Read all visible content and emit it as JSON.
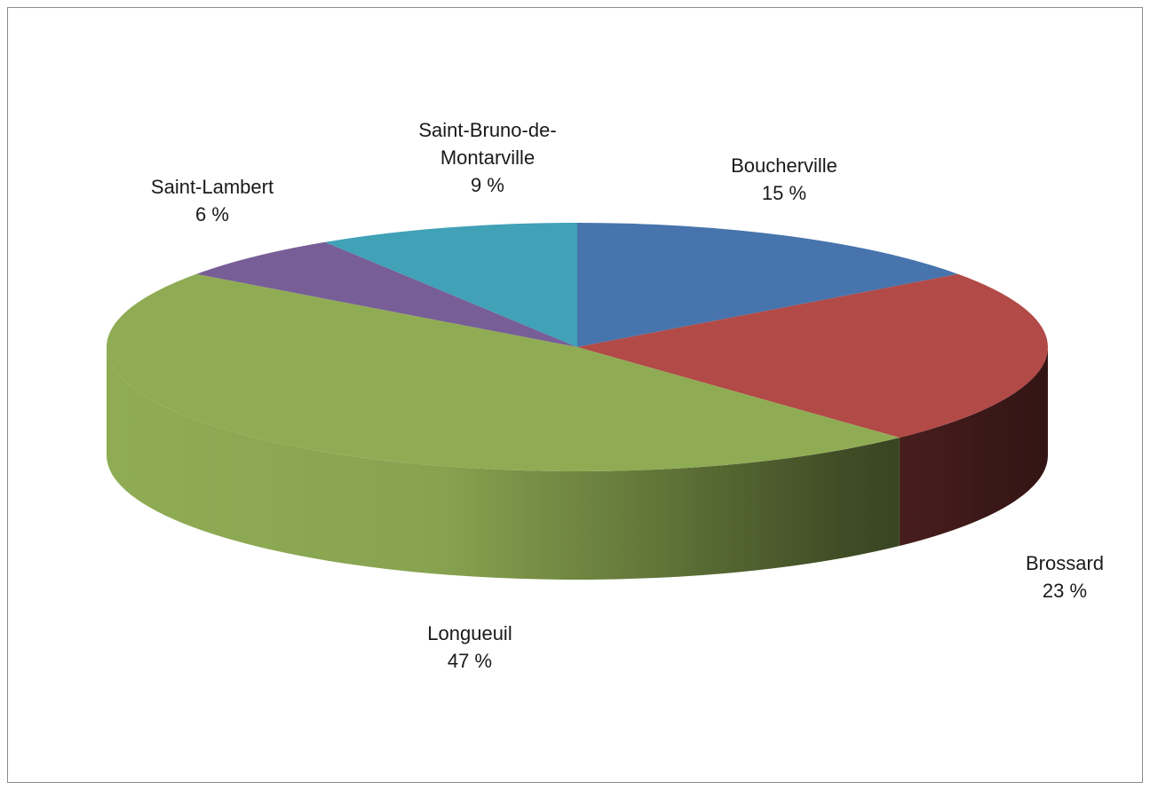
{
  "chart_data": {
    "type": "pie",
    "style": "3d",
    "title": "",
    "unit": "%",
    "legend": "none",
    "slices": [
      {
        "label": "Boucherville",
        "value": 15,
        "value_label": "15 %",
        "color": "#4774ad"
      },
      {
        "label": "Brossard",
        "value": 23,
        "value_label": "23 %",
        "color": "#b24a47"
      },
      {
        "label": "Longueuil",
        "value": 47,
        "value_label": "47 %",
        "color": "#8fac54"
      },
      {
        "label": "Saint-Lambert",
        "value": 6,
        "value_label": "6 %",
        "color": "#775e97"
      },
      {
        "label": "Saint-Bruno-de-Montarville",
        "value": 9,
        "value_label": "9 %",
        "color": "#40a1b7"
      }
    ]
  }
}
